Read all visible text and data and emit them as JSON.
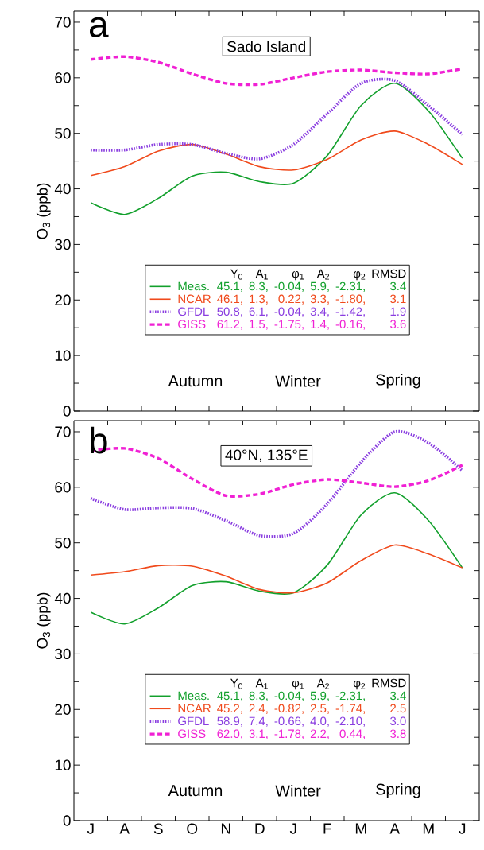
{
  "chart_data": [
    {
      "type": "line",
      "title": "Sado Island",
      "ylabel": "O$_{3}$ (ppb)",
      "ylim": [
        0,
        72
      ],
      "legend": "bottom",
      "tick_labels": "y",
      "categories": [
        null,
        null,
        null,
        null,
        null,
        null,
        null,
        null,
        null,
        null,
        null,
        null
      ],
      "yticks": [
        0,
        {
          "value": 5,
          "label": null
        },
        10,
        {
          "value": 15,
          "label": null
        },
        20,
        {
          "value": 25,
          "label": null
        },
        30,
        {
          "value": 35,
          "label": null
        },
        40,
        {
          "value": 45,
          "label": null
        },
        50,
        {
          "value": 55,
          "label": null
        },
        60,
        {
          "value": 65,
          "label": null
        },
        70
      ],
      "series": [
        {
          "name": "Meas.",
          "color": "#12a02c",
          "line_style": "solid",
          "values": [
            37.5,
            35.4,
            38.3,
            42.3,
            43.0,
            41.3,
            41.0,
            46.0,
            55.0,
            59.0,
            54.0,
            45.5
          ]
        },
        {
          "name": "NCAR",
          "color": "#f04a1c",
          "line_style": "solid",
          "values": [
            42.4,
            44.0,
            46.8,
            48.0,
            46.3,
            44.0,
            43.4,
            45.3,
            48.8,
            50.4,
            48.0,
            44.4
          ]
        },
        {
          "name": "GFDL",
          "color": "#8a3ee0",
          "line_style": "dotted",
          "values": [
            47.0,
            47.0,
            48.0,
            48.0,
            46.4,
            45.4,
            48.0,
            53.5,
            59.0,
            59.5,
            55.0,
            49.8
          ]
        },
        {
          "name": "GISS",
          "color": "#f020d4",
          "line_style": "dashed",
          "values": [
            63.3,
            63.8,
            62.8,
            60.7,
            59.0,
            58.8,
            60.0,
            61.1,
            61.4,
            60.9,
            60.7,
            61.6
          ]
        }
      ],
      "annotations": [
        "a",
        "Autumn",
        "Winter",
        "Spring",
        "Y$_{0}$",
        "A$_{1}$",
        "φ$_{1}$",
        "A$_{2}$",
        "φ$_{2}$",
        "RMSD",
        "45.1,",
        "8.3,",
        "-0.04,",
        "5.9,",
        "-2.31,",
        "3.4",
        "46.1,",
        "1.3,",
        "0.22,",
        "3.3,",
        "-1.80,",
        "3.1",
        "50.8,",
        "6.1,",
        "-0.04,",
        "3.4,",
        "-1.42,",
        "1.9",
        "61.2,",
        "1.5,",
        "-1.75,",
        "1.4,",
        "-0.16,",
        "3.6"
      ]
    },
    {
      "type": "line",
      "title": "40°N, 135°E",
      "ylabel": "O$_{3}$ (ppb)",
      "ylim": [
        0,
        72
      ],
      "legend": "bottom",
      "categories": [
        "J",
        "A",
        "S",
        "O",
        "N",
        "D",
        "J",
        "F",
        "M",
        "A",
        "M",
        "J"
      ],
      "yticks": [
        0,
        {
          "value": 5,
          "label": null
        },
        10,
        {
          "value": 15,
          "label": null
        },
        20,
        {
          "value": 25,
          "label": null
        },
        30,
        {
          "value": 35,
          "label": null
        },
        40,
        {
          "value": 45,
          "label": null
        },
        50,
        {
          "value": 55,
          "label": null
        },
        60,
        {
          "value": 65,
          "label": null
        },
        70
      ],
      "series": [
        {
          "name": "Meas.",
          "color": "#12a02c",
          "line_style": "solid",
          "values": [
            37.5,
            35.4,
            38.3,
            42.3,
            43.0,
            41.3,
            41.0,
            46.0,
            55.0,
            59.0,
            54.0,
            45.5
          ]
        },
        {
          "name": "NCAR",
          "color": "#f04a1c",
          "line_style": "solid",
          "values": [
            44.2,
            44.8,
            45.9,
            45.8,
            44.0,
            41.6,
            41.0,
            42.8,
            46.8,
            49.6,
            48.0,
            45.5
          ]
        },
        {
          "name": "GFDL",
          "color": "#8a3ee0",
          "line_style": "dotted",
          "values": [
            58.0,
            56.0,
            56.3,
            56.2,
            54.0,
            51.3,
            51.7,
            57.0,
            64.5,
            70.0,
            68.0,
            63.0
          ]
        },
        {
          "name": "GISS",
          "color": "#f020d4",
          "line_style": "dashed",
          "values": [
            66.6,
            67.0,
            65.2,
            61.5,
            58.5,
            58.8,
            60.5,
            61.4,
            60.8,
            60.1,
            61.2,
            64.0
          ]
        }
      ],
      "annotations": [
        "b",
        "Autumn",
        "Winter",
        "Spring",
        "Y$_{0}$",
        "A$_{1}$",
        "φ$_{1}$",
        "A$_{2}$",
        "φ$_{2}$",
        "RMSD",
        "45.1,",
        "8.3,",
        "-0.04,",
        "5.9,",
        "-2.31,",
        "3.4",
        "45.2,",
        "2.4,",
        "-0.82,",
        "2.5,",
        "-1.74,",
        "2.5",
        "58.9,",
        "7.4,",
        "-0.66,",
        "4.0,",
        "-2.10,",
        "3.0",
        "62.0,",
        "3.1,",
        "-1.78,",
        "2.2,",
        "0.44,",
        "3.8"
      ]
    }
  ]
}
